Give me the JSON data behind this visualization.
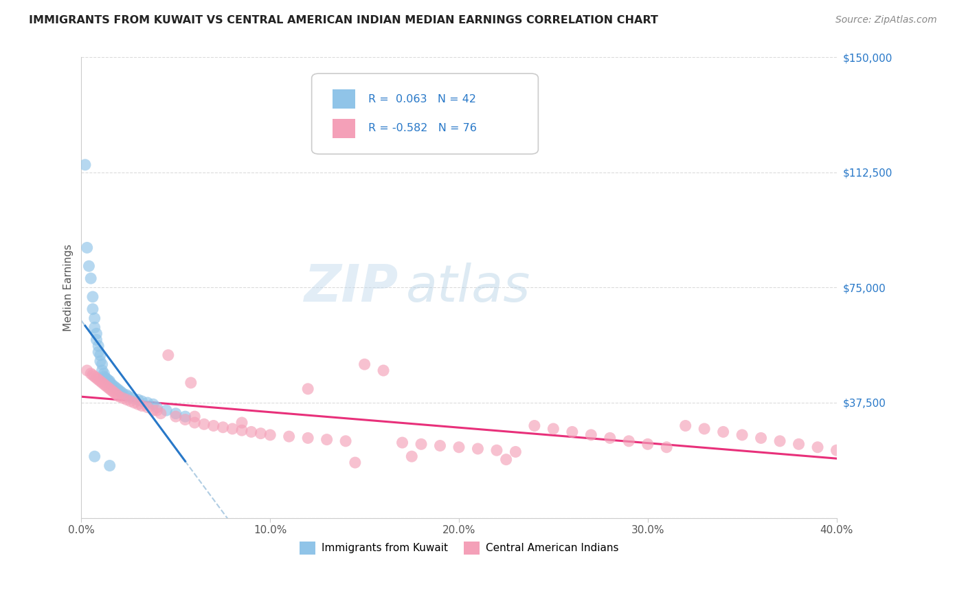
{
  "title": "IMMIGRANTS FROM KUWAIT VS CENTRAL AMERICAN INDIAN MEDIAN EARNINGS CORRELATION CHART",
  "source": "Source: ZipAtlas.com",
  "ylabel": "Median Earnings",
  "xlim": [
    0.0,
    0.4
  ],
  "ylim": [
    0,
    150000
  ],
  "yticks": [
    0,
    37500,
    75000,
    112500,
    150000
  ],
  "ytick_labels": [
    "",
    "$37,500",
    "$75,000",
    "$112,500",
    "$150,000"
  ],
  "xticks": [
    0.0,
    0.1,
    0.2,
    0.3,
    0.4
  ],
  "xtick_labels": [
    "0.0%",
    "10.0%",
    "20.0%",
    "30.0%",
    "40.0%"
  ],
  "kuwait_R": 0.063,
  "kuwait_N": 42,
  "central_R": -0.582,
  "central_N": 76,
  "blue_scatter_color": "#90c4e8",
  "pink_scatter_color": "#f4a0b8",
  "blue_line_color": "#2878c8",
  "pink_line_color": "#e8307a",
  "dash_line_color": "#a8c8e0",
  "background_color": "#ffffff",
  "grid_color": "#d8d8d8",
  "axis_label_color": "#555555",
  "ytick_color": "#2878c8",
  "xtick_color": "#555555",
  "title_color": "#222222",
  "source_color": "#888888",
  "watermark_zip": "ZIP",
  "watermark_atlas": "atlas",
  "watermark_color_zip": "#c0d8ec",
  "watermark_color_atlas": "#a8c8e0",
  "legend_color": "#2878c8",
  "kuwait_x": [
    0.002,
    0.003,
    0.004,
    0.005,
    0.006,
    0.006,
    0.007,
    0.007,
    0.008,
    0.008,
    0.009,
    0.009,
    0.01,
    0.01,
    0.011,
    0.011,
    0.012,
    0.012,
    0.013,
    0.014,
    0.015,
    0.015,
    0.016,
    0.017,
    0.018,
    0.019,
    0.02,
    0.021,
    0.022,
    0.024,
    0.025,
    0.027,
    0.03,
    0.032,
    0.035,
    0.038,
    0.04,
    0.045,
    0.05,
    0.055,
    0.007,
    0.015
  ],
  "kuwait_y": [
    115000,
    88000,
    82000,
    78000,
    72000,
    68000,
    65000,
    62000,
    60000,
    58000,
    56000,
    54000,
    53000,
    51000,
    50000,
    48000,
    47000,
    46000,
    45500,
    45000,
    44500,
    44000,
    43500,
    43000,
    42500,
    42000,
    41500,
    41000,
    40500,
    40000,
    39500,
    39000,
    38500,
    38000,
    37500,
    37000,
    36000,
    35000,
    34000,
    33000,
    20000,
    17000
  ],
  "central_x": [
    0.003,
    0.005,
    0.006,
    0.007,
    0.008,
    0.009,
    0.01,
    0.011,
    0.012,
    0.013,
    0.014,
    0.015,
    0.016,
    0.017,
    0.018,
    0.019,
    0.02,
    0.022,
    0.024,
    0.026,
    0.028,
    0.03,
    0.032,
    0.035,
    0.038,
    0.042,
    0.046,
    0.05,
    0.055,
    0.06,
    0.065,
    0.07,
    0.075,
    0.08,
    0.085,
    0.09,
    0.095,
    0.1,
    0.11,
    0.12,
    0.13,
    0.14,
    0.15,
    0.16,
    0.17,
    0.18,
    0.19,
    0.2,
    0.21,
    0.22,
    0.23,
    0.24,
    0.25,
    0.26,
    0.27,
    0.28,
    0.29,
    0.3,
    0.31,
    0.32,
    0.33,
    0.34,
    0.35,
    0.36,
    0.37,
    0.38,
    0.39,
    0.4,
    0.058,
    0.12,
    0.175,
    0.225,
    0.145,
    0.085,
    0.04,
    0.06
  ],
  "central_y": [
    48000,
    47000,
    46500,
    46000,
    45500,
    45000,
    44500,
    44000,
    43500,
    43000,
    42500,
    42000,
    41500,
    41000,
    40500,
    40000,
    39500,
    39000,
    38500,
    38000,
    37500,
    37000,
    36500,
    36000,
    35000,
    34000,
    53000,
    33000,
    32000,
    31000,
    30500,
    30000,
    29500,
    29000,
    28500,
    28000,
    27500,
    27000,
    26500,
    26000,
    25500,
    25000,
    50000,
    48000,
    24500,
    24000,
    23500,
    23000,
    22500,
    22000,
    21500,
    30000,
    29000,
    28000,
    27000,
    26000,
    25000,
    24000,
    23000,
    30000,
    29000,
    28000,
    27000,
    26000,
    25000,
    24000,
    23000,
    22000,
    44000,
    42000,
    20000,
    19000,
    18000,
    31000,
    35000,
    33000
  ]
}
